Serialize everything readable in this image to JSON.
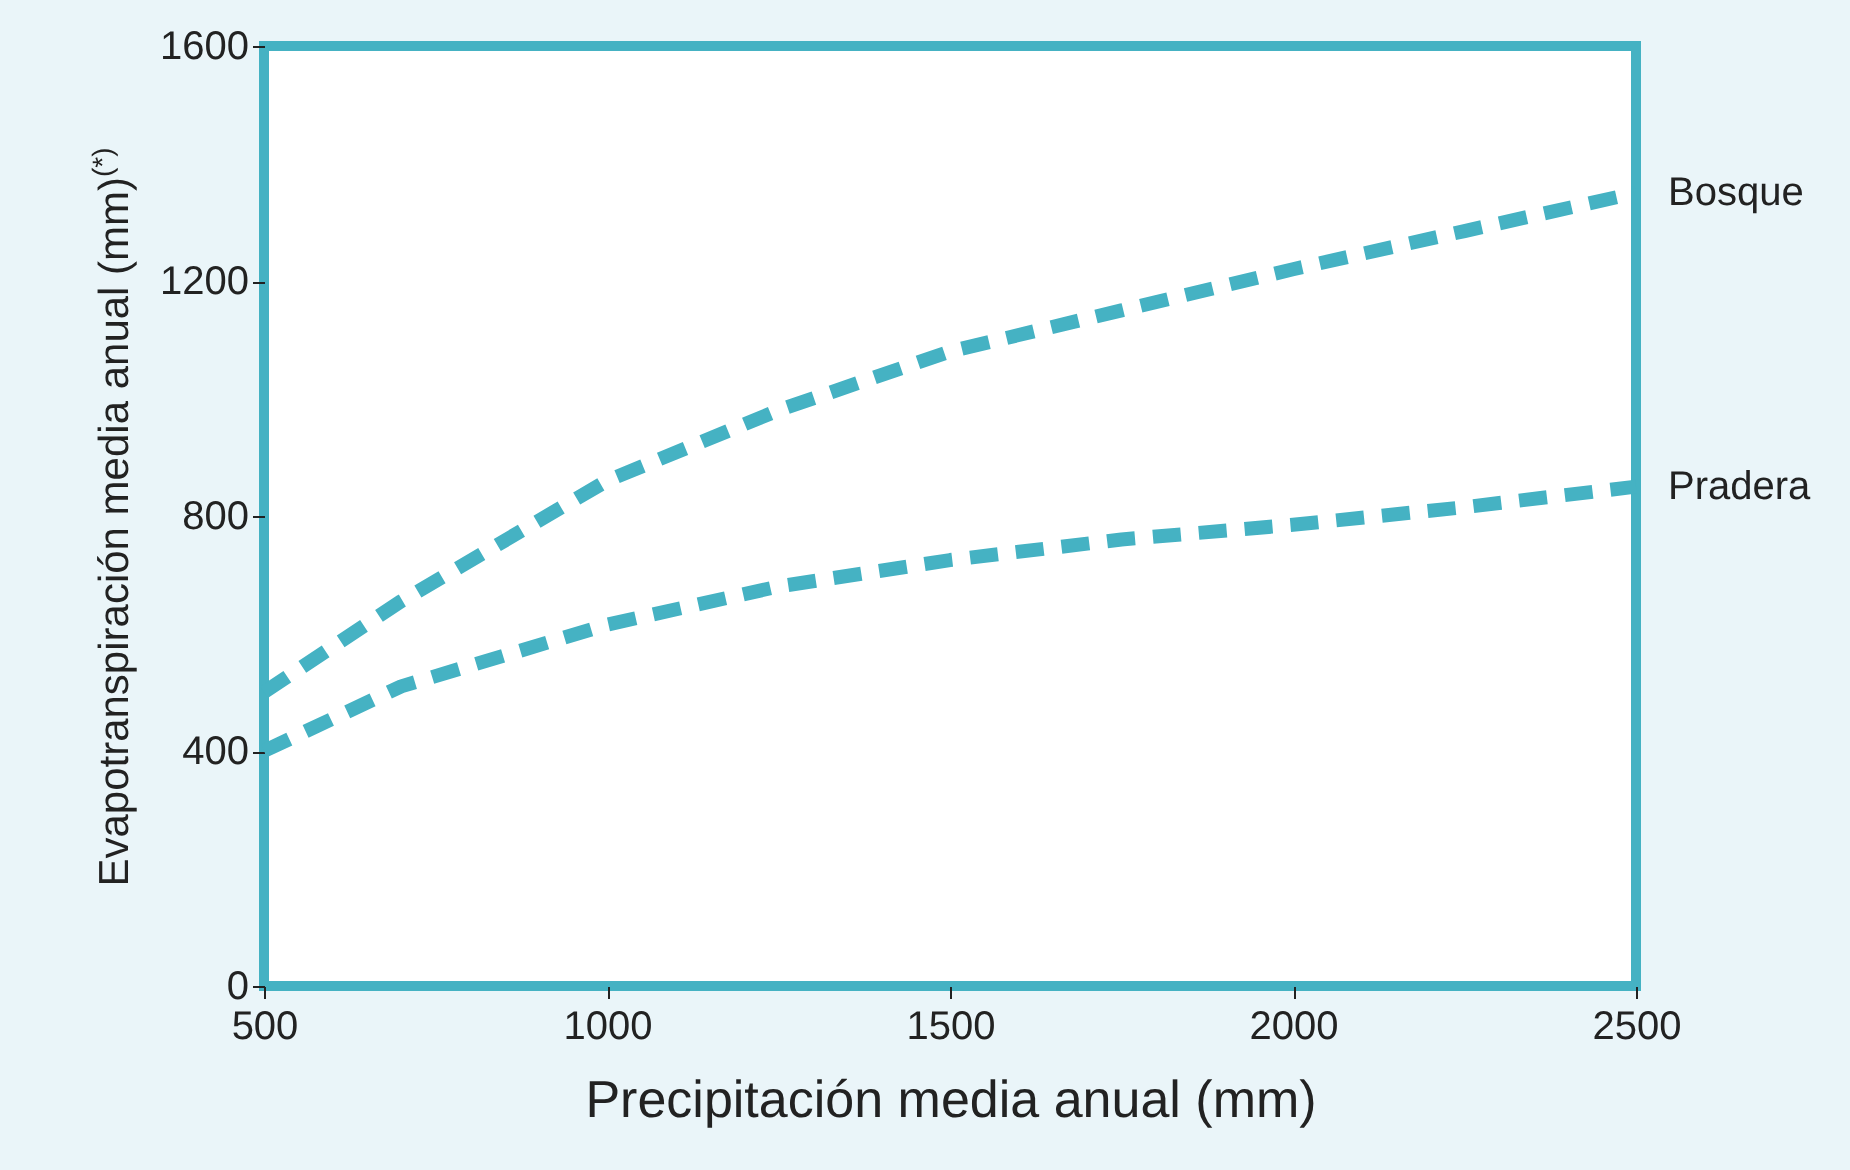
{
  "chart_data": {
    "type": "line",
    "xlabel": "Precipitación media anual (mm)",
    "ylabel": "Evapotranspiración media anual (mm)$^{(*)}$",
    "x": [
      500,
      700,
      1000,
      1250,
      1500,
      1750,
      2000,
      2250,
      2500
    ],
    "series": [
      {
        "name": "Bosque",
        "color": "#45b2c3",
        "values": [
          500,
          655,
          860,
          980,
          1080,
          1150,
          1220,
          1285,
          1350
        ]
      },
      {
        "name": "Pradera",
        "color": "#45b2c3",
        "values": [
          400,
          510,
          615,
          680,
          725,
          760,
          785,
          815,
          850
        ]
      }
    ],
    "xlim": [
      500,
      2500
    ],
    "xticks": [
      500,
      1000,
      1500,
      2000,
      2500
    ],
    "ylim": [
      0,
      1600
    ],
    "yticks": [
      0,
      400,
      800,
      1200,
      1600
    ],
    "grid": false,
    "legend": false,
    "line_style": "dashed",
    "marker": "none"
  }
}
